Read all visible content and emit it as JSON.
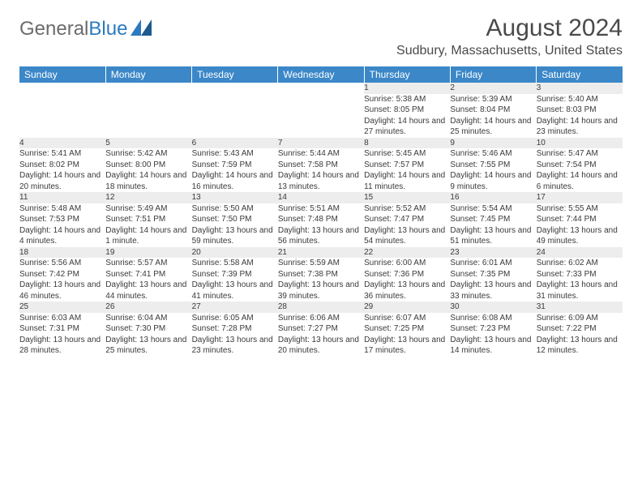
{
  "logo": {
    "text_gray": "General",
    "text_blue": "Blue"
  },
  "title": "August 2024",
  "location": "Sudbury, Massachusetts, United States",
  "colors": {
    "header_bg": "#3b87c8",
    "header_text": "#ffffff",
    "daynum_bg": "#ededed",
    "row_border": "#2f6fa8",
    "body_text": "#3a3a3a",
    "logo_gray": "#6b6b6b",
    "logo_blue": "#2b7bbf"
  },
  "days_of_week": [
    "Sunday",
    "Monday",
    "Tuesday",
    "Wednesday",
    "Thursday",
    "Friday",
    "Saturday"
  ],
  "weeks": [
    [
      null,
      null,
      null,
      null,
      {
        "n": "1",
        "sr": "5:38 AM",
        "ss": "8:05 PM",
        "dl": "14 hours and 27 minutes."
      },
      {
        "n": "2",
        "sr": "5:39 AM",
        "ss": "8:04 PM",
        "dl": "14 hours and 25 minutes."
      },
      {
        "n": "3",
        "sr": "5:40 AM",
        "ss": "8:03 PM",
        "dl": "14 hours and 23 minutes."
      }
    ],
    [
      {
        "n": "4",
        "sr": "5:41 AM",
        "ss": "8:02 PM",
        "dl": "14 hours and 20 minutes."
      },
      {
        "n": "5",
        "sr": "5:42 AM",
        "ss": "8:00 PM",
        "dl": "14 hours and 18 minutes."
      },
      {
        "n": "6",
        "sr": "5:43 AM",
        "ss": "7:59 PM",
        "dl": "14 hours and 16 minutes."
      },
      {
        "n": "7",
        "sr": "5:44 AM",
        "ss": "7:58 PM",
        "dl": "14 hours and 13 minutes."
      },
      {
        "n": "8",
        "sr": "5:45 AM",
        "ss": "7:57 PM",
        "dl": "14 hours and 11 minutes."
      },
      {
        "n": "9",
        "sr": "5:46 AM",
        "ss": "7:55 PM",
        "dl": "14 hours and 9 minutes."
      },
      {
        "n": "10",
        "sr": "5:47 AM",
        "ss": "7:54 PM",
        "dl": "14 hours and 6 minutes."
      }
    ],
    [
      {
        "n": "11",
        "sr": "5:48 AM",
        "ss": "7:53 PM",
        "dl": "14 hours and 4 minutes."
      },
      {
        "n": "12",
        "sr": "5:49 AM",
        "ss": "7:51 PM",
        "dl": "14 hours and 1 minute."
      },
      {
        "n": "13",
        "sr": "5:50 AM",
        "ss": "7:50 PM",
        "dl": "13 hours and 59 minutes."
      },
      {
        "n": "14",
        "sr": "5:51 AM",
        "ss": "7:48 PM",
        "dl": "13 hours and 56 minutes."
      },
      {
        "n": "15",
        "sr": "5:52 AM",
        "ss": "7:47 PM",
        "dl": "13 hours and 54 minutes."
      },
      {
        "n": "16",
        "sr": "5:54 AM",
        "ss": "7:45 PM",
        "dl": "13 hours and 51 minutes."
      },
      {
        "n": "17",
        "sr": "5:55 AM",
        "ss": "7:44 PM",
        "dl": "13 hours and 49 minutes."
      }
    ],
    [
      {
        "n": "18",
        "sr": "5:56 AM",
        "ss": "7:42 PM",
        "dl": "13 hours and 46 minutes."
      },
      {
        "n": "19",
        "sr": "5:57 AM",
        "ss": "7:41 PM",
        "dl": "13 hours and 44 minutes."
      },
      {
        "n": "20",
        "sr": "5:58 AM",
        "ss": "7:39 PM",
        "dl": "13 hours and 41 minutes."
      },
      {
        "n": "21",
        "sr": "5:59 AM",
        "ss": "7:38 PM",
        "dl": "13 hours and 39 minutes."
      },
      {
        "n": "22",
        "sr": "6:00 AM",
        "ss": "7:36 PM",
        "dl": "13 hours and 36 minutes."
      },
      {
        "n": "23",
        "sr": "6:01 AM",
        "ss": "7:35 PM",
        "dl": "13 hours and 33 minutes."
      },
      {
        "n": "24",
        "sr": "6:02 AM",
        "ss": "7:33 PM",
        "dl": "13 hours and 31 minutes."
      }
    ],
    [
      {
        "n": "25",
        "sr": "6:03 AM",
        "ss": "7:31 PM",
        "dl": "13 hours and 28 minutes."
      },
      {
        "n": "26",
        "sr": "6:04 AM",
        "ss": "7:30 PM",
        "dl": "13 hours and 25 minutes."
      },
      {
        "n": "27",
        "sr": "6:05 AM",
        "ss": "7:28 PM",
        "dl": "13 hours and 23 minutes."
      },
      {
        "n": "28",
        "sr": "6:06 AM",
        "ss": "7:27 PM",
        "dl": "13 hours and 20 minutes."
      },
      {
        "n": "29",
        "sr": "6:07 AM",
        "ss": "7:25 PM",
        "dl": "13 hours and 17 minutes."
      },
      {
        "n": "30",
        "sr": "6:08 AM",
        "ss": "7:23 PM",
        "dl": "13 hours and 14 minutes."
      },
      {
        "n": "31",
        "sr": "6:09 AM",
        "ss": "7:22 PM",
        "dl": "13 hours and 12 minutes."
      }
    ]
  ]
}
